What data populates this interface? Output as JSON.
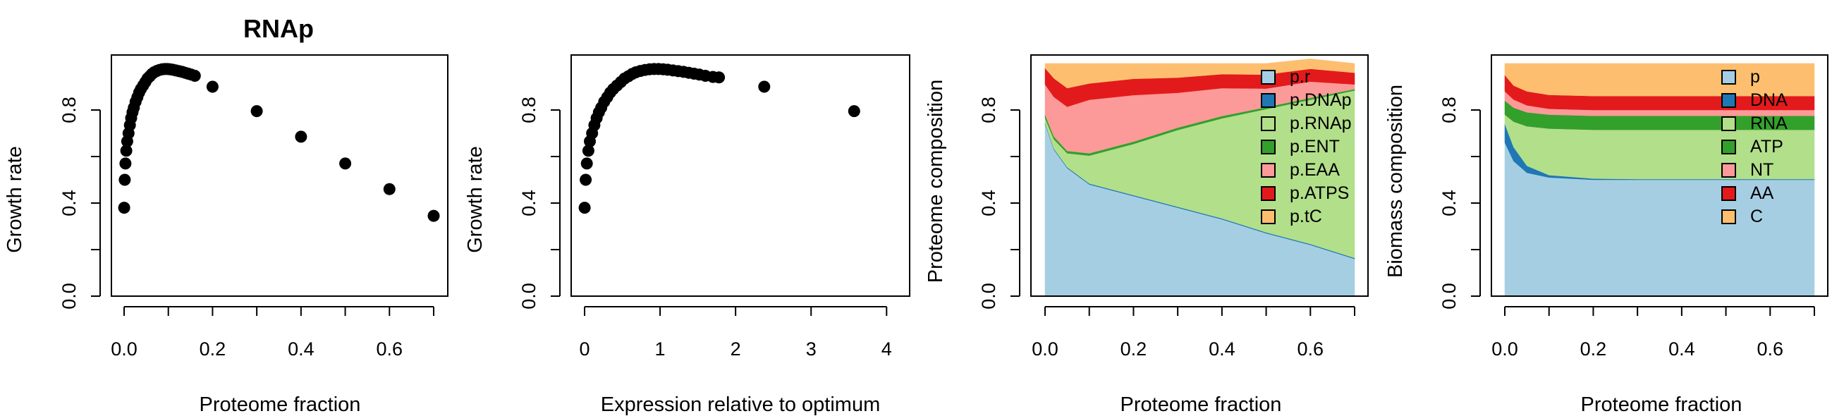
{
  "figure": {
    "colors": {
      "black": "#000000",
      "c1": "#A6CEE3",
      "c2": "#1F78B4",
      "c3": "#B2DF8A",
      "c4": "#33A02C",
      "c5": "#FB9A99",
      "c6": "#E31A1C",
      "c7": "#FDBF6F"
    }
  },
  "chart_data": [
    {
      "type": "scatter",
      "title": "RNAp",
      "xlabel": "Proteome fraction",
      "ylabel": "Growth rate",
      "xlim": [
        0,
        0.7
      ],
      "ylim": [
        0,
        1
      ],
      "xticks": [
        "0.0",
        "0.2",
        "0.4",
        "0.6"
      ],
      "yticks": [
        "0.0",
        "0.4",
        "0.8"
      ],
      "x": [
        0.0001,
        0.0015,
        0.003,
        0.005,
        0.007,
        0.01,
        0.013,
        0.016,
        0.019,
        0.022,
        0.026,
        0.03,
        0.034,
        0.038,
        0.043,
        0.048,
        0.053,
        0.058,
        0.063,
        0.068,
        0.074,
        0.08,
        0.086,
        0.092,
        0.098,
        0.104,
        0.11,
        0.117,
        0.124,
        0.131,
        0.138,
        0.145,
        0.152,
        0.16,
        0.2,
        0.3,
        0.4,
        0.5,
        0.6,
        0.7
      ],
      "y": [
        0.38,
        0.5,
        0.57,
        0.625,
        0.665,
        0.7,
        0.735,
        0.765,
        0.79,
        0.81,
        0.835,
        0.855,
        0.875,
        0.89,
        0.905,
        0.92,
        0.935,
        0.945,
        0.955,
        0.962,
        0.968,
        0.972,
        0.975,
        0.976,
        0.976,
        0.975,
        0.973,
        0.97,
        0.967,
        0.964,
        0.96,
        0.956,
        0.952,
        0.947,
        0.9,
        0.795,
        0.685,
        0.57,
        0.46,
        0.345
      ]
    },
    {
      "type": "scatter",
      "xlabel": "Expression relative to optimum",
      "ylabel": "Growth rate",
      "xlim": [
        0,
        4.1
      ],
      "ylim": [
        0,
        1
      ],
      "xticks": [
        "0",
        "1",
        "2",
        "3",
        "4"
      ],
      "yticks": [
        "0.0",
        "0.4",
        "0.8"
      ],
      "x": [
        0.001,
        0.015,
        0.03,
        0.05,
        0.07,
        0.1,
        0.13,
        0.16,
        0.19,
        0.22,
        0.26,
        0.3,
        0.34,
        0.38,
        0.43,
        0.48,
        0.53,
        0.58,
        0.63,
        0.68,
        0.74,
        0.8,
        0.86,
        0.92,
        0.98,
        1.04,
        1.1,
        1.17,
        1.24,
        1.31,
        1.38,
        1.45,
        1.52,
        1.6,
        1.7,
        1.78,
        2.38,
        3.57
      ],
      "y": [
        0.38,
        0.5,
        0.57,
        0.625,
        0.665,
        0.7,
        0.735,
        0.765,
        0.79,
        0.81,
        0.835,
        0.855,
        0.875,
        0.89,
        0.905,
        0.92,
        0.935,
        0.945,
        0.955,
        0.962,
        0.968,
        0.972,
        0.975,
        0.976,
        0.976,
        0.975,
        0.973,
        0.97,
        0.967,
        0.964,
        0.96,
        0.956,
        0.952,
        0.947,
        0.942,
        0.94,
        0.9,
        0.795
      ]
    },
    {
      "type": "area",
      "stacked": true,
      "xlabel": "Proteome fraction",
      "ylabel": "Proteome composition",
      "xlim": [
        0,
        0.7
      ],
      "ylim": [
        0,
        1
      ],
      "xticks": [
        "0.0",
        "0.2",
        "0.4",
        "0.6"
      ],
      "yticks": [
        "0.0",
        "0.4",
        "0.8"
      ],
      "legend_position": "top-right",
      "x": [
        0.0,
        0.02,
        0.05,
        0.1,
        0.2,
        0.3,
        0.4,
        0.5,
        0.6,
        0.7
      ],
      "series": [
        {
          "name": "p.r",
          "color": "#A6CEE3",
          "values": [
            0.74,
            0.63,
            0.55,
            0.48,
            0.43,
            0.38,
            0.33,
            0.27,
            0.22,
            0.16
          ]
        },
        {
          "name": "p.DNAp",
          "color": "#1F78B4",
          "values": [
            0.005,
            0.004,
            0.004,
            0.004,
            0.004,
            0.004,
            0.004,
            0.004,
            0.004,
            0.004
          ]
        },
        {
          "name": "p.RNAp",
          "color": "#B2DF8A",
          "values": [
            0.02,
            0.04,
            0.06,
            0.12,
            0.22,
            0.33,
            0.43,
            0.53,
            0.62,
            0.72
          ]
        },
        {
          "name": "p.ENT",
          "color": "#33A02C",
          "values": [
            0.015,
            0.012,
            0.01,
            0.01,
            0.01,
            0.01,
            0.01,
            0.008,
            0.008,
            0.006
          ]
        },
        {
          "name": "p.EAA",
          "color": "#FB9A99",
          "values": [
            0.13,
            0.17,
            0.19,
            0.23,
            0.2,
            0.15,
            0.12,
            0.08,
            0.07,
            0.02
          ]
        },
        {
          "name": "p.ATPS",
          "color": "#E31A1C",
          "values": [
            0.07,
            0.08,
            0.08,
            0.07,
            0.07,
            0.065,
            0.06,
            0.06,
            0.055,
            0.05
          ]
        },
        {
          "name": "p.tC",
          "color": "#FDBF6F",
          "values": [
            0.02,
            0.064,
            0.106,
            0.086,
            0.066,
            0.061,
            0.046,
            0.048,
            0.043,
            0.04
          ]
        }
      ]
    },
    {
      "type": "area",
      "stacked": true,
      "xlabel": "Proteome fraction",
      "ylabel": "Biomass composition",
      "xlim": [
        0,
        0.7
      ],
      "ylim": [
        0,
        1
      ],
      "xticks": [
        "0.0",
        "0.2",
        "0.4",
        "0.6"
      ],
      "yticks": [
        "0.0",
        "0.4",
        "0.8"
      ],
      "legend_position": "top-right",
      "x": [
        0.0,
        0.02,
        0.05,
        0.1,
        0.2,
        0.3,
        0.4,
        0.5,
        0.6,
        0.7
      ],
      "series": [
        {
          "name": "p",
          "color": "#A6CEE3",
          "values": [
            0.66,
            0.58,
            0.53,
            0.51,
            0.5,
            0.5,
            0.5,
            0.5,
            0.5,
            0.5
          ]
        },
        {
          "name": "DNA",
          "color": "#1F78B4",
          "values": [
            0.08,
            0.06,
            0.03,
            0.01,
            0.005,
            0.003,
            0.003,
            0.003,
            0.003,
            0.003
          ]
        },
        {
          "name": "RNA",
          "color": "#B2DF8A",
          "values": [
            0.04,
            0.11,
            0.17,
            0.2,
            0.21,
            0.212,
            0.212,
            0.212,
            0.212,
            0.212
          ]
        },
        {
          "name": "ATP",
          "color": "#33A02C",
          "values": [
            0.06,
            0.06,
            0.06,
            0.06,
            0.06,
            0.06,
            0.06,
            0.06,
            0.06,
            0.06
          ]
        },
        {
          "name": "NT",
          "color": "#FB9A99",
          "values": [
            0.04,
            0.035,
            0.03,
            0.025,
            0.025,
            0.025,
            0.025,
            0.025,
            0.025,
            0.025
          ]
        },
        {
          "name": "AA",
          "color": "#E31A1C",
          "values": [
            0.07,
            0.06,
            0.06,
            0.06,
            0.06,
            0.06,
            0.06,
            0.06,
            0.06,
            0.06
          ]
        },
        {
          "name": "C",
          "color": "#FDBF6F",
          "values": [
            0.05,
            0.095,
            0.12,
            0.135,
            0.14,
            0.14,
            0.14,
            0.14,
            0.14,
            0.14
          ]
        }
      ]
    }
  ]
}
